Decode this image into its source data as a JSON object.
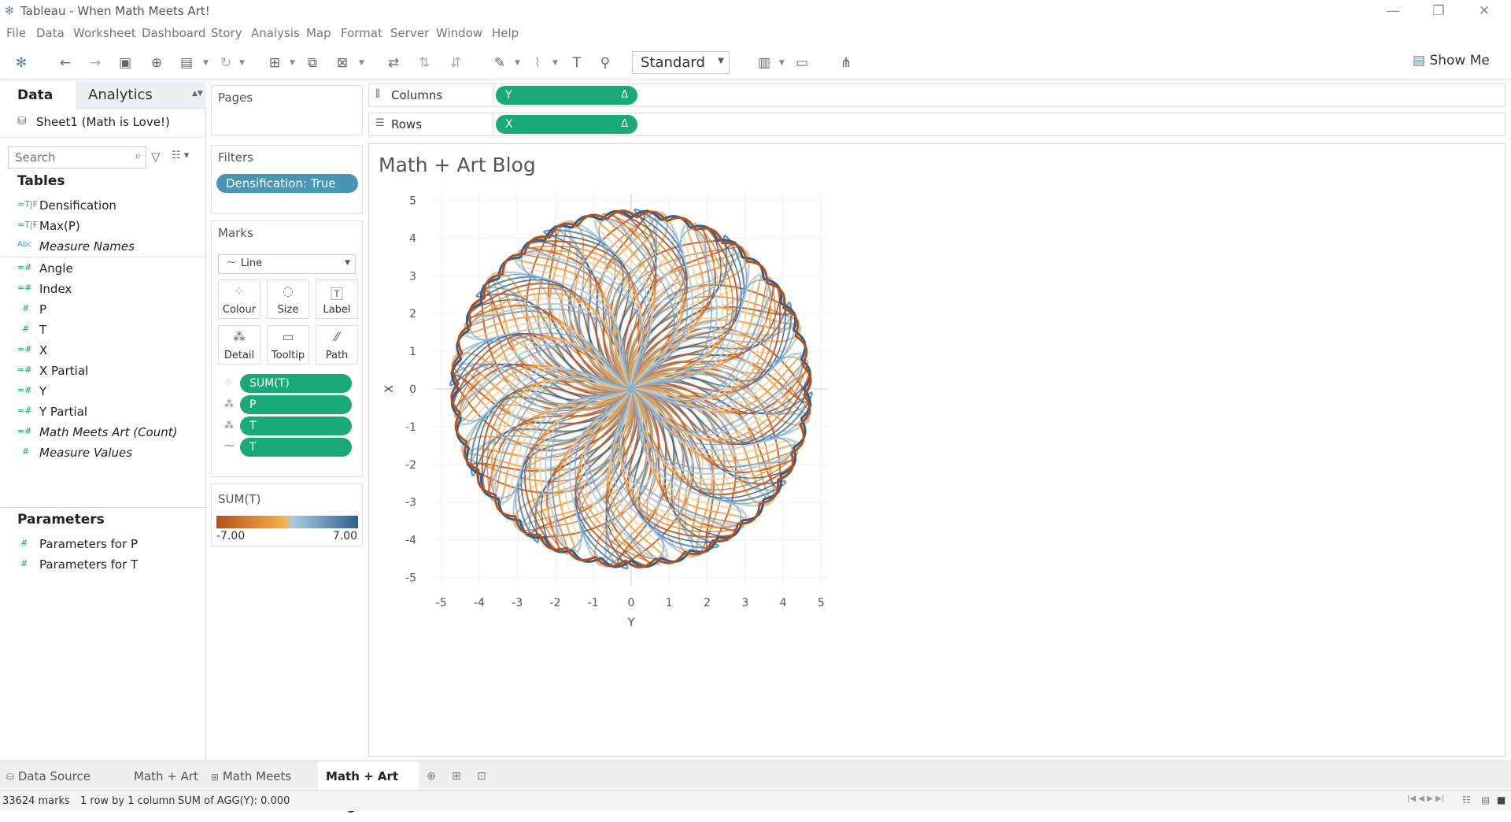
{
  "window": {
    "title": "Tableau - When Math Meets Art!"
  },
  "menu": [
    "File",
    "Data",
    "Worksheet",
    "Dashboard",
    "Story",
    "Analysis",
    "Map",
    "Format",
    "Server",
    "Window",
    "Help"
  ],
  "toolbar": {
    "fit_value": "Standard",
    "show_me_label": "Show Me"
  },
  "data_pane": {
    "tabs": [
      "Data",
      "Analytics"
    ],
    "datasource": "Sheet1 (Math is Love!)",
    "search_placeholder": "Search",
    "tables_header": "Tables",
    "fields": [
      {
        "name": "Densification",
        "icon": "=T|F",
        "italic": false
      },
      {
        "name": "Max(P)",
        "icon": "=T|F",
        "italic": false
      },
      {
        "name": "Measure Names",
        "icon": "Abc",
        "italic": true
      },
      {
        "name": "Angle",
        "icon": "=#",
        "italic": false
      },
      {
        "name": "Index",
        "icon": "=#",
        "italic": false
      },
      {
        "name": "P",
        "icon": "#",
        "italic": false
      },
      {
        "name": "T",
        "icon": "#",
        "italic": false
      },
      {
        "name": "X",
        "icon": "=#",
        "italic": false
      },
      {
        "name": "X Partial",
        "icon": "=#",
        "italic": false
      },
      {
        "name": "Y",
        "icon": "=#",
        "italic": false
      },
      {
        "name": "Y Partial",
        "icon": "=#",
        "italic": false
      },
      {
        "name": "Math Meets Art (Count)",
        "icon": "=#",
        "italic": true
      },
      {
        "name": "Measure Values",
        "icon": "#",
        "italic": true
      }
    ],
    "parameters_header": "Parameters",
    "parameters": [
      "Parameters for P",
      "Parameters for T"
    ]
  },
  "pages": {
    "title": "Pages"
  },
  "filters": {
    "title": "Filters",
    "pill": "Densification: True"
  },
  "marks": {
    "title": "Marks",
    "type": "Line",
    "buttons": [
      "Colour",
      "Size",
      "Label",
      "Detail",
      "Tooltip",
      "Path"
    ],
    "pills": [
      {
        "icon": "colour-dots",
        "label": "SUM(T)"
      },
      {
        "icon": "detail-dots",
        "label": "P"
      },
      {
        "icon": "detail-dots",
        "label": "T"
      },
      {
        "icon": "path-line",
        "label": "T"
      }
    ]
  },
  "legend": {
    "title": "SUM(T)",
    "min_label": "-7.00",
    "max_label": "7.00",
    "colors": [
      "#b6501a",
      "#f4b24c",
      "#a9cbe0",
      "#2f5f8f"
    ]
  },
  "shelves": {
    "columns_label": "Columns",
    "columns_pill": "Y",
    "columns_delta": "Δ",
    "rows_label": "Rows",
    "rows_pill": "X",
    "rows_delta": "Δ"
  },
  "sheet": {
    "title": "Math + Art Blog"
  },
  "chart_data": {
    "type": "line",
    "title": "Math + Art Blog",
    "xlabel": "Y",
    "ylabel": "X",
    "xlim": [
      -5.2,
      5.2
    ],
    "ylim": [
      -5.2,
      5.2
    ],
    "x_ticks": [
      -5,
      -4,
      -3,
      -2,
      -1,
      0,
      1,
      2,
      3,
      4,
      5
    ],
    "y_ticks": [
      5,
      4,
      3,
      2,
      1,
      0,
      -1,
      -2,
      -3,
      -4,
      -5
    ],
    "grid": true,
    "color_field": "SUM(T)",
    "color_range": [
      -7,
      7
    ],
    "mark_count": 33624
  },
  "tabs": {
    "data_source": "Data Source",
    "sheets": [
      "Math + Art",
      "Math Meets Art!",
      "Math + Art Blog"
    ],
    "active": "Math + Art Blog"
  },
  "status": {
    "marks": "33624 marks",
    "layout": "1 row by 1 column",
    "sum": "SUM of AGG(Y): 0.000"
  }
}
